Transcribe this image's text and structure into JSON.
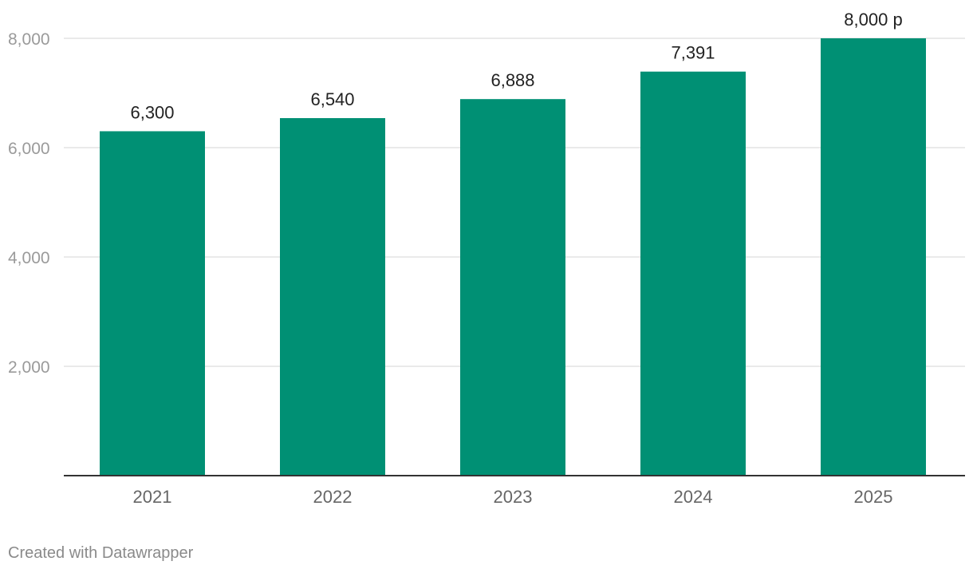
{
  "chart_data": {
    "type": "bar",
    "categories": [
      "2021",
      "2022",
      "2023",
      "2024",
      "2025"
    ],
    "values": [
      6300,
      6540,
      6888,
      7391,
      8000
    ],
    "data_labels": [
      "6,300",
      "6,540",
      "6,888",
      "7,391",
      "8,000 p"
    ],
    "y_ticks": [
      {
        "value": 2000,
        "label": "2,000"
      },
      {
        "value": 4000,
        "label": "4,000"
      },
      {
        "value": 6000,
        "label": "6,000"
      },
      {
        "value": 8000,
        "label": "8,000"
      }
    ],
    "ylim": [
      0,
      8000
    ],
    "title": "",
    "xlabel": "",
    "ylabel": "",
    "grid": true,
    "legend": "none",
    "colors": {
      "bar": "#009074",
      "grid": "#e3e3e3",
      "baseline": "#333333"
    }
  },
  "footer": {
    "credit": "Created with Datawrapper"
  }
}
